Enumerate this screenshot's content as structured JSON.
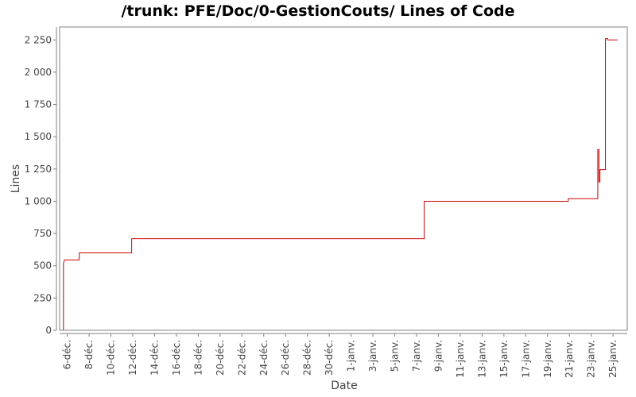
{
  "chart_data": {
    "type": "line",
    "title": "/trunk: PFE/Doc/0-GestionCouts/ Lines of Code",
    "xlabel": "Date",
    "ylabel": "Lines",
    "ylim": [
      0,
      2350
    ],
    "grid": false,
    "legend": "none",
    "colors": {
      "series": "#cc0000",
      "axis": "#808080",
      "plot_border": "#808080",
      "text": "#444444",
      "title": "#000000",
      "background": "#ffffff"
    },
    "y_ticks": [
      {
        "value": 0,
        "label": "0"
      },
      {
        "value": 250,
        "label": "250"
      },
      {
        "value": 500,
        "label": "500"
      },
      {
        "value": 750,
        "label": "750"
      },
      {
        "value": 1000,
        "label": "1 000"
      },
      {
        "value": 1250,
        "label": "1 250"
      },
      {
        "value": 1500,
        "label": "1 500"
      },
      {
        "value": 1750,
        "label": "1 750"
      },
      {
        "value": 2000,
        "label": "2 000"
      },
      {
        "value": 2250,
        "label": "2 250"
      }
    ],
    "x_ticks": [
      {
        "value": 0,
        "label": "6-déc."
      },
      {
        "value": 2,
        "label": "8-déc."
      },
      {
        "value": 4,
        "label": "10-déc."
      },
      {
        "value": 6,
        "label": "12-déc."
      },
      {
        "value": 8,
        "label": "14-déc."
      },
      {
        "value": 10,
        "label": "16-déc."
      },
      {
        "value": 12,
        "label": "18-déc."
      },
      {
        "value": 14,
        "label": "20-déc."
      },
      {
        "value": 16,
        "label": "22-déc."
      },
      {
        "value": 18,
        "label": "24-déc."
      },
      {
        "value": 20,
        "label": "26-déc."
      },
      {
        "value": 22,
        "label": "28-déc."
      },
      {
        "value": 24,
        "label": "30-déc."
      },
      {
        "value": 26,
        "label": "1-janv."
      },
      {
        "value": 28,
        "label": "3-janv."
      },
      {
        "value": 30,
        "label": "5-janv."
      },
      {
        "value": 32,
        "label": "7-janv."
      },
      {
        "value": 34,
        "label": "9-janv."
      },
      {
        "value": 36,
        "label": "11-janv."
      },
      {
        "value": 38,
        "label": "13-janv."
      },
      {
        "value": 40,
        "label": "15-janv."
      },
      {
        "value": 42,
        "label": "17-janv."
      },
      {
        "value": 44,
        "label": "19-janv."
      },
      {
        "value": 46,
        "label": "21-janv."
      },
      {
        "value": 48,
        "label": "23-janv."
      },
      {
        "value": 50,
        "label": "25-janv."
      }
    ],
    "xlim": [
      -0.7,
      51.3
    ],
    "series": [
      {
        "step": true,
        "points": [
          [
            -0.35,
            0
          ],
          [
            -0.35,
            520
          ],
          [
            -0.25,
            545
          ],
          [
            1.1,
            545
          ],
          [
            1.1,
            600
          ],
          [
            5.9,
            600
          ],
          [
            5.9,
            710
          ],
          [
            32.7,
            710
          ],
          [
            32.7,
            1000
          ],
          [
            45.9,
            1000
          ],
          [
            45.9,
            1020
          ],
          [
            48.6,
            1020
          ],
          [
            48.6,
            1400
          ],
          [
            48.7,
            1400
          ],
          [
            48.7,
            1150
          ],
          [
            48.8,
            1150
          ],
          [
            48.8,
            1245
          ],
          [
            49.3,
            1245
          ],
          [
            49.3,
            2260
          ],
          [
            49.5,
            2260
          ],
          [
            49.5,
            2250
          ],
          [
            50.4,
            2250
          ]
        ]
      }
    ]
  }
}
